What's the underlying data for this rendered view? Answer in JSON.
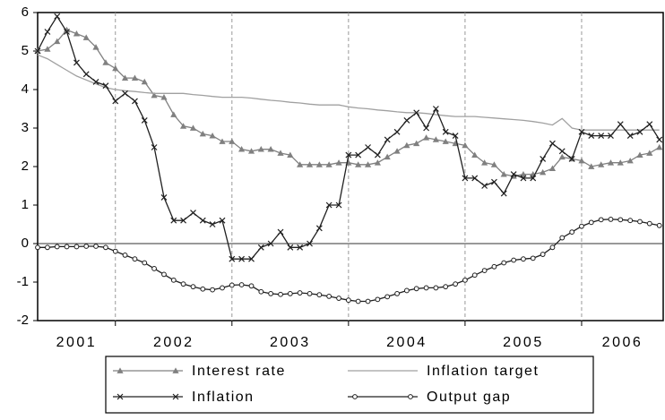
{
  "chart_data": {
    "type": "line",
    "x": [
      2001.333,
      2001.417,
      2001.5,
      2001.583,
      2001.667,
      2001.75,
      2001.833,
      2001.917,
      2002,
      2002.083,
      2002.167,
      2002.25,
      2002.333,
      2002.417,
      2002.5,
      2002.583,
      2002.667,
      2002.75,
      2002.833,
      2002.917,
      2003,
      2003.083,
      2003.167,
      2003.25,
      2003.333,
      2003.417,
      2003.5,
      2003.583,
      2003.667,
      2003.75,
      2003.833,
      2003.917,
      2004,
      2004.083,
      2004.167,
      2004.25,
      2004.333,
      2004.417,
      2004.5,
      2004.583,
      2004.667,
      2004.75,
      2004.833,
      2004.917,
      2005,
      2005.083,
      2005.167,
      2005.25,
      2005.333,
      2005.417,
      2005.5,
      2005.583,
      2005.667,
      2005.75,
      2005.833,
      2005.917,
      2006,
      2006.083,
      2006.167,
      2006.25,
      2006.333,
      2006.417,
      2006.5,
      2006.583,
      2006.667
    ],
    "series": [
      {
        "name": "Interest rate",
        "color": "#808080",
        "marker": "triangle",
        "values": [
          5.0,
          5.05,
          5.25,
          5.55,
          5.45,
          5.35,
          5.1,
          4.7,
          4.55,
          4.3,
          4.3,
          4.2,
          3.85,
          3.8,
          3.35,
          3.05,
          3.0,
          2.85,
          2.8,
          2.65,
          2.65,
          2.45,
          2.4,
          2.45,
          2.45,
          2.35,
          2.3,
          2.05,
          2.05,
          2.05,
          2.05,
          2.1,
          2.1,
          2.05,
          2.05,
          2.1,
          2.25,
          2.4,
          2.55,
          2.6,
          2.75,
          2.7,
          2.65,
          2.6,
          2.55,
          2.3,
          2.1,
          2.05,
          1.8,
          1.75,
          1.8,
          1.8,
          1.85,
          1.95,
          2.25,
          2.2,
          2.15,
          2.0,
          2.05,
          2.1,
          2.1,
          2.15,
          2.3,
          2.35,
          2.5
        ]
      },
      {
        "name": "Inflation target",
        "color": "#a0a0a0",
        "marker": "none",
        "values": [
          4.9,
          4.8,
          4.65,
          4.5,
          4.35,
          4.25,
          4.15,
          4.05,
          4.0,
          3.97,
          3.95,
          3.92,
          3.9,
          3.9,
          3.9,
          3.9,
          3.87,
          3.85,
          3.82,
          3.8,
          3.8,
          3.8,
          3.78,
          3.75,
          3.72,
          3.7,
          3.67,
          3.65,
          3.62,
          3.6,
          3.6,
          3.6,
          3.55,
          3.52,
          3.5,
          3.47,
          3.45,
          3.42,
          3.4,
          3.4,
          3.38,
          3.35,
          3.32,
          3.3,
          3.3,
          3.3,
          3.28,
          3.26,
          3.24,
          3.22,
          3.2,
          3.17,
          3.13,
          3.08,
          3.25,
          3.0,
          2.95,
          2.95,
          2.95,
          2.95,
          2.95,
          2.95,
          2.95,
          2.95,
          2.95
        ]
      },
      {
        "name": "Inflation",
        "color": "#202020",
        "marker": "x",
        "values": [
          5.0,
          5.5,
          5.9,
          5.5,
          4.7,
          4.4,
          4.2,
          4.1,
          3.7,
          3.9,
          3.7,
          3.2,
          2.5,
          1.2,
          0.6,
          0.6,
          0.8,
          0.6,
          0.5,
          0.6,
          -0.4,
          -0.4,
          -0.4,
          -0.1,
          0.0,
          0.3,
          -0.1,
          -0.1,
          0.0,
          0.4,
          1.0,
          1.0,
          2.3,
          2.3,
          2.5,
          2.3,
          2.7,
          2.9,
          3.2,
          3.4,
          3.0,
          3.5,
          2.9,
          2.8,
          1.7,
          1.7,
          1.5,
          1.6,
          1.3,
          1.8,
          1.7,
          1.7,
          2.2,
          2.6,
          2.4,
          2.2,
          2.9,
          2.8,
          2.8,
          2.8,
          3.1,
          2.8,
          2.9,
          3.1,
          2.7
        ]
      },
      {
        "name": "Output gap",
        "color": "#202020",
        "marker": "circle",
        "values": [
          -0.1,
          -0.1,
          -0.08,
          -0.08,
          -0.08,
          -0.07,
          -0.07,
          -0.1,
          -0.2,
          -0.3,
          -0.4,
          -0.5,
          -0.65,
          -0.8,
          -0.95,
          -1.05,
          -1.12,
          -1.18,
          -1.2,
          -1.15,
          -1.08,
          -1.07,
          -1.1,
          -1.25,
          -1.3,
          -1.32,
          -1.3,
          -1.28,
          -1.3,
          -1.33,
          -1.37,
          -1.42,
          -1.47,
          -1.5,
          -1.5,
          -1.45,
          -1.38,
          -1.3,
          -1.22,
          -1.17,
          -1.15,
          -1.15,
          -1.12,
          -1.05,
          -0.95,
          -0.82,
          -0.7,
          -0.6,
          -0.5,
          -0.43,
          -0.4,
          -0.38,
          -0.28,
          -0.1,
          0.15,
          0.3,
          0.45,
          0.55,
          0.62,
          0.63,
          0.62,
          0.6,
          0.57,
          0.52,
          0.47
        ]
      }
    ],
    "xlim": [
      2001.333,
      2006.7
    ],
    "xticks": [
      {
        "value": 2001,
        "label": "2001"
      },
      {
        "value": 2002,
        "label": "2002"
      },
      {
        "value": 2003,
        "label": "2003"
      },
      {
        "value": 2004,
        "label": "2004"
      },
      {
        "value": 2005,
        "label": "2005"
      },
      {
        "value": 2006,
        "label": "2006"
      }
    ],
    "ylim": [
      -2,
      6
    ],
    "yticks": [
      {
        "value": -2,
        "label": "-2"
      },
      {
        "value": -1,
        "label": "-1"
      },
      0,
      1,
      2,
      3,
      4,
      5,
      6
    ],
    "zero_line": true,
    "grid": "x"
  }
}
